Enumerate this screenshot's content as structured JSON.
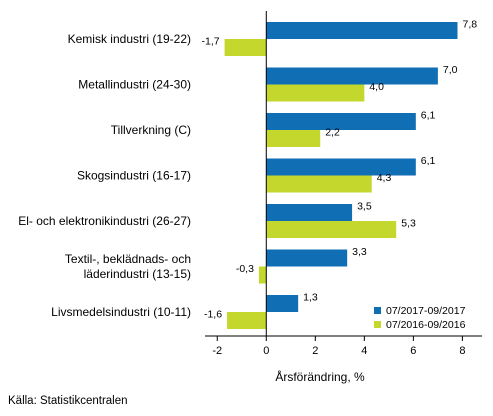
{
  "chart_data": {
    "type": "bar",
    "orientation": "horizontal",
    "categories": [
      [
        "Kemisk industri (19-22)"
      ],
      [
        "Metallindustri (24-30)"
      ],
      [
        "Tillverkning (C)"
      ],
      [
        "Skogsindustri (16-17)"
      ],
      [
        "El- och elektronikindustri (26-27)"
      ],
      [
        "Textil-, beklädnads- och",
        "läderindustri (13-15)"
      ],
      [
        "Livsmedelsindustri (10-11)"
      ]
    ],
    "series": [
      {
        "name": "07/2017-09/2017",
        "color": "#0f6eb4",
        "values": [
          7.8,
          7.0,
          6.1,
          6.1,
          3.5,
          3.3,
          1.3
        ],
        "labels": [
          "7,8",
          "7,0",
          "6,1",
          "6,1",
          "3,5",
          "3,3",
          "1,3"
        ]
      },
      {
        "name": "07/2016-09/2016",
        "color": "#c3d72d",
        "values": [
          -1.7,
          4.0,
          2.2,
          4.3,
          5.3,
          -0.3,
          -1.6
        ],
        "labels": [
          "-1,7",
          "4,0",
          "2,2",
          "4,3",
          "5,3",
          "-0,3",
          "-1,6"
        ]
      }
    ],
    "xlabel": "Årsförändring, %",
    "xlim": [
      -2.5,
      8.8
    ],
    "xticks": [
      -2,
      0,
      2,
      4,
      6,
      8
    ],
    "xtick_labels": [
      "-2",
      "0",
      "2",
      "4",
      "6",
      "8"
    ],
    "grid": false,
    "legend_position": "bottom-right"
  },
  "source": "Källa: Statistikcentralen"
}
